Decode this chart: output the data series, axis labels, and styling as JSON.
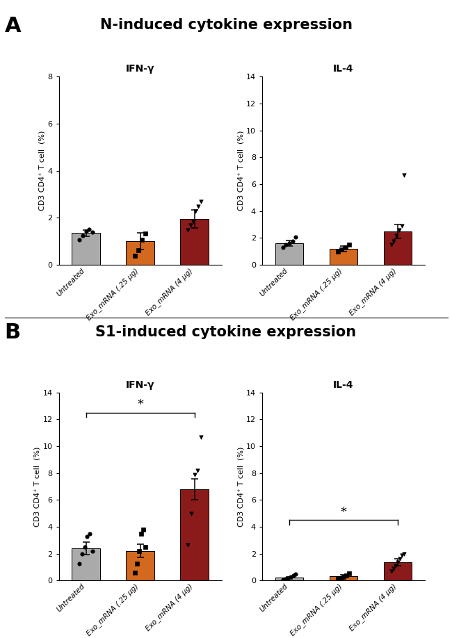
{
  "panel_A_title": "N-induced cytokine expression",
  "panel_B_title": "S1-induced cytokine expression",
  "categories": [
    "Untreated",
    "Exo_mRNA (.25 μg)",
    "Exo_mRNA (4 μg)"
  ],
  "bar_colors": [
    "#aaaaaa",
    "#d2691e",
    "#8b1a1a"
  ],
  "bar_edge_color": "black",
  "background_color": "#ffffff",
  "A_IFNg": {
    "title": "IFN-γ",
    "bar_means": [
      1.35,
      1.0,
      1.95
    ],
    "bar_errors": [
      0.13,
      0.35,
      0.38
    ],
    "ylim": [
      0,
      8
    ],
    "yticks": [
      0,
      2,
      4,
      6,
      8
    ],
    "ylabel": "CD3 CD4⁺ T cell  (%)",
    "scatter_untreated": [
      1.05,
      1.25,
      1.42,
      1.5,
      1.38
    ],
    "scatter_025": [
      0.38,
      0.62,
      1.05,
      1.32
    ],
    "scatter_4ug": [
      1.48,
      1.68,
      1.82,
      2.28,
      2.48,
      2.68
    ],
    "sig_line": null
  },
  "A_IL4": {
    "title": "IL-4",
    "bar_means": [
      1.6,
      1.2,
      2.5
    ],
    "bar_errors": [
      0.2,
      0.22,
      0.52
    ],
    "ylim": [
      0,
      14
    ],
    "yticks": [
      0,
      2,
      4,
      6,
      8,
      10,
      12,
      14
    ],
    "ylabel": "CD3 CD4⁺ T cell  (%)",
    "scatter_untreated": [
      1.28,
      1.52,
      1.62,
      1.78,
      2.08
    ],
    "scatter_025": [
      0.98,
      1.12,
      1.28,
      1.52
    ],
    "scatter_4ug": [
      1.48,
      1.78,
      2.18,
      2.58,
      2.88,
      6.68
    ],
    "sig_line": null
  },
  "B_IFNg": {
    "title": "IFN-γ",
    "bar_means": [
      2.4,
      2.2,
      6.8
    ],
    "bar_errors": [
      0.45,
      0.5,
      0.78
    ],
    "ylim": [
      0,
      14
    ],
    "yticks": [
      0,
      2,
      4,
      6,
      8,
      10,
      12,
      14
    ],
    "ylabel": "CD3 CD4⁺ T cell  (%)",
    "scatter_untreated": [
      1.28,
      1.98,
      2.48,
      3.28,
      3.48,
      2.18
    ],
    "scatter_025": [
      0.58,
      1.28,
      2.18,
      3.48,
      3.78,
      2.48
    ],
    "scatter_4ug": [
      2.68,
      4.98,
      7.88,
      8.18,
      10.68
    ],
    "sig_line": [
      0,
      2,
      12.5,
      "*"
    ]
  },
  "B_IL4": {
    "title": "IL-4",
    "bar_means": [
      0.22,
      0.35,
      1.35
    ],
    "bar_errors": [
      0.08,
      0.1,
      0.25
    ],
    "ylim": [
      0,
      14
    ],
    "yticks": [
      0,
      2,
      4,
      6,
      8,
      10,
      12,
      14
    ],
    "ylabel": "CD3 CD4⁺ T cell  (%)",
    "scatter_untreated": [
      0.05,
      0.12,
      0.2,
      0.28,
      0.38,
      0.5
    ],
    "scatter_025": [
      0.1,
      0.18,
      0.28,
      0.38,
      0.55
    ],
    "scatter_4ug": [
      0.68,
      0.88,
      1.08,
      1.38,
      1.62,
      1.88,
      1.98
    ],
    "sig_line": [
      0,
      2,
      4.5,
      "*"
    ]
  }
}
